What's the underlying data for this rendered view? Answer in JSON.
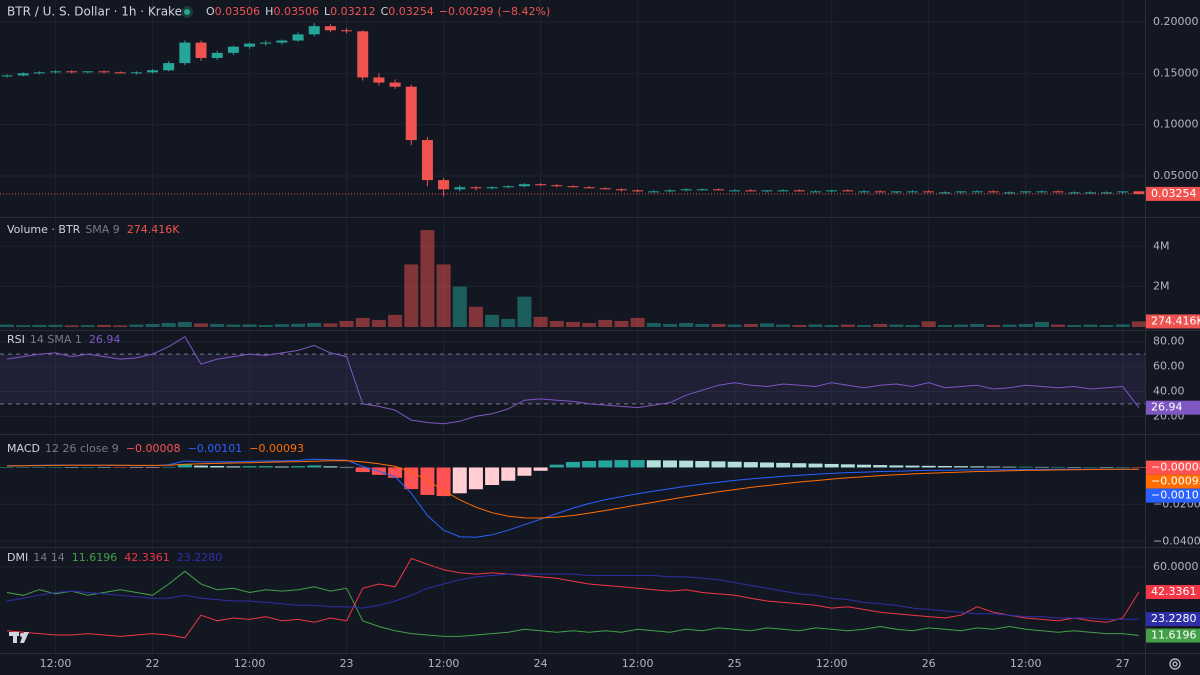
{
  "chart_data": [
    {
      "type": "candlestick",
      "title": "BTR / U. S. Dollar · 1h · Kraken",
      "header": [
        {
          "label": "O",
          "value": 0.03506
        },
        {
          "label": "H",
          "value": 0.03506
        },
        {
          "label": "L",
          "value": 0.03212
        },
        {
          "label": "C",
          "value": 0.03254
        }
      ],
      "change": {
        "value": -0.00299,
        "label": "−0.00299"
      },
      "change_percent": {
        "value": -8.42,
        "label": "(−8.42%)"
      },
      "open": [
        0.147,
        0.148,
        0.15,
        0.151,
        0.152,
        0.151,
        0.152,
        0.151,
        0.15,
        0.151,
        0.153,
        0.16,
        0.18,
        0.165,
        0.17,
        0.176,
        0.179,
        0.18,
        0.182,
        0.188,
        0.196,
        0.192,
        0.191,
        0.146,
        0.141,
        0.137,
        0.085,
        0.046,
        0.037,
        0.039,
        0.038,
        0.039,
        0.04,
        0.042,
        0.041,
        0.04,
        0.039,
        0.038,
        0.037,
        0.036,
        0.035,
        0.035,
        0.036,
        0.037,
        0.037,
        0.036,
        0.036,
        0.035,
        0.036,
        0.036,
        0.035,
        0.035,
        0.036,
        0.035,
        0.035,
        0.034,
        0.035,
        0.035,
        0.034,
        0.034,
        0.035,
        0.035,
        0.034,
        0.034,
        0.035,
        0.035,
        0.034,
        0.034,
        0.034,
        0.034,
        0.03506
      ],
      "high": [
        0.149,
        0.151,
        0.152,
        0.153,
        0.153,
        0.152,
        0.153,
        0.152,
        0.152,
        0.154,
        0.162,
        0.182,
        0.182,
        0.172,
        0.177,
        0.18,
        0.182,
        0.183,
        0.19,
        0.199,
        0.198,
        0.194,
        0.192,
        0.15,
        0.144,
        0.139,
        0.088,
        0.048,
        0.041,
        0.04,
        0.04,
        0.041,
        0.043,
        0.043,
        0.042,
        0.041,
        0.04,
        0.039,
        0.038,
        0.037,
        0.036,
        0.037,
        0.038,
        0.038,
        0.038,
        0.037,
        0.037,
        0.036,
        0.037,
        0.037,
        0.036,
        0.036,
        0.037,
        0.036,
        0.036,
        0.035,
        0.036,
        0.036,
        0.035,
        0.035,
        0.036,
        0.036,
        0.035,
        0.035,
        0.036,
        0.036,
        0.035,
        0.035,
        0.035,
        0.035,
        0.03506
      ],
      "low": [
        0.146,
        0.147,
        0.149,
        0.15,
        0.15,
        0.15,
        0.15,
        0.15,
        0.149,
        0.15,
        0.152,
        0.158,
        0.162,
        0.163,
        0.168,
        0.174,
        0.177,
        0.178,
        0.181,
        0.186,
        0.19,
        0.189,
        0.143,
        0.138,
        0.135,
        0.08,
        0.04,
        0.03,
        0.035,
        0.036,
        0.037,
        0.038,
        0.039,
        0.04,
        0.039,
        0.039,
        0.038,
        0.037,
        0.035,
        0.034,
        0.034,
        0.034,
        0.035,
        0.036,
        0.036,
        0.035,
        0.035,
        0.034,
        0.035,
        0.035,
        0.034,
        0.034,
        0.035,
        0.034,
        0.034,
        0.033,
        0.034,
        0.034,
        0.033,
        0.033,
        0.034,
        0.034,
        0.033,
        0.033,
        0.034,
        0.034,
        0.033,
        0.033,
        0.033,
        0.033,
        0.03212
      ],
      "close": [
        0.148,
        0.15,
        0.151,
        0.152,
        0.151,
        0.152,
        0.151,
        0.15,
        0.151,
        0.153,
        0.16,
        0.18,
        0.165,
        0.17,
        0.176,
        0.179,
        0.18,
        0.182,
        0.188,
        0.196,
        0.192,
        0.191,
        0.146,
        0.141,
        0.137,
        0.085,
        0.046,
        0.037,
        0.039,
        0.038,
        0.039,
        0.04,
        0.042,
        0.041,
        0.04,
        0.039,
        0.038,
        0.037,
        0.036,
        0.035,
        0.035,
        0.036,
        0.037,
        0.037,
        0.036,
        0.036,
        0.035,
        0.036,
        0.036,
        0.035,
        0.035,
        0.036,
        0.035,
        0.035,
        0.034,
        0.035,
        0.035,
        0.034,
        0.034,
        0.035,
        0.035,
        0.034,
        0.034,
        0.035,
        0.035,
        0.034,
        0.034,
        0.034,
        0.034,
        0.035,
        0.03254
      ],
      "up_color": "#26a69a",
      "down_color": "#ef5350",
      "ylim": [
        0.011,
        0.2215
      ],
      "yticks": [
        {
          "value": 0.05,
          "label": "0.05000"
        },
        {
          "value": 0.1,
          "label": "0.10000"
        },
        {
          "value": 0.15,
          "label": "0.15000"
        },
        {
          "value": 0.2,
          "label": "0.20000"
        }
      ],
      "xticks": [
        {
          "value": 3,
          "label": "12:00"
        },
        {
          "value": 9,
          "label": "22"
        },
        {
          "value": 15,
          "label": "12:00"
        },
        {
          "value": 21,
          "label": "23"
        },
        {
          "value": 27,
          "label": "12:00"
        },
        {
          "value": 33,
          "label": "24"
        },
        {
          "value": 39,
          "label": "12:00"
        },
        {
          "value": 45,
          "label": "25"
        },
        {
          "value": 51,
          "label": "12:00"
        },
        {
          "value": 57,
          "label": "26"
        },
        {
          "value": 63,
          "label": "12:00"
        },
        {
          "value": 69,
          "label": "27"
        }
      ],
      "grid": true
    },
    {
      "type": "bar",
      "title": "Volume · BTR",
      "subtitle": "SMA 9",
      "values": [
        120000,
        90000,
        100000,
        110000,
        80000,
        90000,
        100000,
        80000,
        120000,
        150000,
        200000,
        250000,
        180000,
        150000,
        120000,
        130000,
        100000,
        140000,
        160000,
        200000,
        180000,
        300000,
        450000,
        350000,
        600000,
        3100000,
        4800000,
        3100000,
        2000000,
        1000000,
        600000,
        400000,
        1500000,
        500000,
        300000,
        250000,
        200000,
        350000,
        300000,
        450000,
        200000,
        150000,
        200000,
        150000,
        150000,
        120000,
        150000,
        180000,
        120000,
        100000,
        130000,
        100000,
        120000,
        100000,
        150000,
        120000,
        100000,
        280000,
        100000,
        120000,
        150000,
        100000,
        120000,
        150000,
        250000,
        120000,
        100000,
        120000,
        100000,
        130000,
        274416
      ],
      "last_label": {
        "value": 274416,
        "label": "274.416K"
      },
      "up_color": "rgba(38,166,154,0.5)",
      "down_color": "rgba(239,83,80,0.5)",
      "ylim": [
        0,
        5350000
      ],
      "yticks": [
        {
          "value": 2000000,
          "label": "2M"
        },
        {
          "value": 4000000,
          "label": "4M"
        }
      ],
      "grid": true
    },
    {
      "type": "line",
      "title": "RSI",
      "subtitle": "14 SMA 1",
      "color": "#7e57c2",
      "values": [
        66,
        68,
        70,
        71,
        68,
        70,
        68,
        66,
        67,
        70,
        76,
        84,
        62,
        66,
        68,
        70,
        69,
        71,
        73,
        77,
        71,
        68,
        30,
        28,
        25,
        17,
        15,
        14,
        16,
        20,
        22,
        26,
        33,
        34,
        33,
        32,
        30,
        29,
        28,
        27,
        29,
        31,
        37,
        41,
        45,
        47,
        45,
        44,
        46,
        45,
        44,
        47,
        45,
        43,
        45,
        46,
        44,
        47,
        43,
        44,
        45,
        42,
        43,
        45,
        44,
        43,
        44,
        42,
        43,
        44,
        26.94
      ],
      "bands": [
        30,
        70
      ],
      "band_color": "rgba(126,87,194,0.12)",
      "ylim": [
        9,
        87
      ],
      "yticks": [
        {
          "value": 80,
          "label": "80.00"
        },
        {
          "value": 60,
          "label": "60.00"
        },
        {
          "value": 40,
          "label": "40.00"
        },
        {
          "value": 20,
          "label": "20.00"
        }
      ],
      "grid": true
    },
    {
      "type": "line",
      "title": "MACD",
      "subtitle": "12 26 close 9",
      "series": [
        {
          "kind": "histogram",
          "colors": [
            "#26a69a",
            "#b2dfdb",
            "#ffcdd2",
            "#ff5252"
          ],
          "values": [
            0.0002,
            0.0002,
            0.0002,
            0.0002,
            0.0001,
            0.0001,
            0,
            -0.0001,
            -0.0001,
            -0.0001,
            0.0003,
            0.0018,
            0.001,
            0.0008,
            0.0006,
            0.0007,
            0.0007,
            0.0005,
            0.0007,
            0.0011,
            0.0006,
            0.0003,
            -0.0025,
            -0.004,
            -0.0056,
            -0.0117,
            -0.0149,
            -0.0155,
            -0.014,
            -0.0118,
            -0.0095,
            -0.0072,
            -0.0045,
            -0.0018,
            0.0015,
            0.003,
            0.0035,
            0.0038,
            0.004,
            0.004,
            0.0039,
            0.0038,
            0.0037,
            0.0035,
            0.0033,
            0.0031,
            0.0029,
            0.0027,
            0.0025,
            0.0023,
            0.0021,
            0.0019,
            0.0017,
            0.0015,
            0.0013,
            0.0011,
            0.001,
            0.0009,
            0.0008,
            0.0007,
            0.0006,
            0.0005,
            0.0004,
            0.0004,
            0.0003,
            0.0003,
            0.0002,
            0.0002,
            0.0001,
            0.0001,
            -8e-05
          ],
          "last_label": {
            "value": -8e-05,
            "label": "−0.00008"
          }
        },
        {
          "color": "#2962ff",
          "values": [
            0.001,
            0.001,
            0.0012,
            0.0013,
            0.0013,
            0.0013,
            0.0012,
            0.0011,
            0.001,
            0.001,
            0.0015,
            0.0035,
            0.003,
            0.003,
            0.003,
            0.0033,
            0.0035,
            0.0035,
            0.0038,
            0.0045,
            0.0042,
            0.004,
            0.0005,
            -0.002,
            -0.005,
            -0.014,
            -0.026,
            -0.034,
            -0.0375,
            -0.0378,
            -0.0365,
            -0.034,
            -0.031,
            -0.028,
            -0.025,
            -0.022,
            -0.0195,
            -0.0175,
            -0.0158,
            -0.0142,
            -0.0128,
            -0.0115,
            -0.0102,
            -0.009,
            -0.008,
            -0.007,
            -0.0062,
            -0.0055,
            -0.0048,
            -0.0042,
            -0.0037,
            -0.0032,
            -0.0028,
            -0.0025,
            -0.0022,
            -0.002,
            -0.0018,
            -0.0016,
            -0.0015,
            -0.0014,
            -0.0013,
            -0.0012,
            -0.0012,
            -0.0011,
            -0.0011,
            -0.001,
            -0.001,
            -0.001,
            -0.001,
            -0.001,
            -0.00101
          ],
          "last_label": {
            "value": -0.00101,
            "label": "−0.00101"
          }
        },
        {
          "color": "#ff6d00",
          "values": [
            0.0008,
            0.0009,
            0.001,
            0.0011,
            0.0012,
            0.0012,
            0.0012,
            0.0012,
            0.0011,
            0.0011,
            0.0012,
            0.0017,
            0.002,
            0.0022,
            0.0024,
            0.0026,
            0.0028,
            0.003,
            0.0031,
            0.0034,
            0.0036,
            0.0037,
            0.003,
            0.002,
            0.0006,
            -0.0023,
            -0.0071,
            -0.0125,
            -0.0175,
            -0.0215,
            -0.0245,
            -0.0264,
            -0.0273,
            -0.0274,
            -0.0269,
            -0.026,
            -0.0247,
            -0.0233,
            -0.0218,
            -0.0203,
            -0.0188,
            -0.0173,
            -0.0159,
            -0.0145,
            -0.0132,
            -0.012,
            -0.0108,
            -0.0098,
            -0.0088,
            -0.0079,
            -0.0071,
            -0.0063,
            -0.0056,
            -0.005,
            -0.0044,
            -0.0039,
            -0.0035,
            -0.0031,
            -0.0028,
            -0.0025,
            -0.0022,
            -0.002,
            -0.0018,
            -0.0016,
            -0.0015,
            -0.0013,
            -0.0012,
            -0.0011,
            -0.001,
            -0.001,
            -0.00093
          ],
          "last_label": {
            "value": -0.00093,
            "label": "−0.00093"
          }
        }
      ],
      "ylim": [
        -0.042,
        0.0165
      ],
      "yticks": [
        {
          "value": -0.02,
          "label": "−0.02000"
        },
        {
          "value": -0.04,
          "label": "−0.04000"
        }
      ],
      "grid": true
    },
    {
      "type": "line",
      "title": "DMI",
      "subtitle": "14 14",
      "series": [
        {
          "color": "#43a047",
          "values": [
            42,
            40,
            44,
            41,
            43,
            40,
            42,
            44,
            42,
            40,
            48,
            57,
            48,
            44,
            45,
            42,
            44,
            43,
            44,
            46,
            43,
            45,
            22,
            18,
            15,
            13,
            12,
            11,
            11,
            12,
            13,
            14,
            16,
            15,
            14,
            15,
            14,
            15,
            14,
            16,
            15,
            14,
            16,
            15,
            17,
            16,
            15,
            17,
            16,
            15,
            17,
            16,
            15,
            16,
            18,
            16,
            15,
            17,
            16,
            15,
            17,
            16,
            18,
            16,
            15,
            14,
            15,
            14,
            13,
            13,
            11.6196
          ],
          "last_label": {
            "value": 11.6196,
            "label": "11.6196"
          }
        },
        {
          "color": "#f23645",
          "values": [
            15,
            14,
            13,
            12,
            12,
            13,
            12,
            11,
            12,
            13,
            12,
            10,
            26,
            22,
            24,
            23,
            25,
            22,
            23,
            21,
            24,
            22,
            45,
            48,
            46,
            66,
            62,
            58,
            56,
            55,
            56,
            55,
            54,
            53,
            52,
            50,
            48,
            47,
            46,
            45,
            44,
            43,
            44,
            42,
            41,
            40,
            38,
            36,
            35,
            34,
            33,
            31,
            32,
            30,
            28,
            27,
            26,
            25,
            24,
            26,
            32,
            28,
            26,
            24,
            23,
            22,
            24,
            22,
            21,
            24,
            42.3361
          ],
          "last_label": {
            "value": 42.3361,
            "label": "42.3361"
          }
        },
        {
          "color": "#2e2ea8",
          "values": [
            36,
            38,
            40,
            42,
            43,
            42,
            41,
            40,
            39,
            38,
            38,
            40,
            38,
            37,
            36,
            36,
            35,
            34,
            33,
            33,
            32,
            32,
            31,
            33,
            36,
            40,
            45,
            48,
            51,
            53,
            54,
            55,
            55,
            55,
            55,
            55,
            54,
            54,
            54,
            54,
            54,
            53,
            53,
            52,
            51,
            49,
            47,
            45,
            43,
            41,
            40,
            38,
            37,
            35,
            34,
            33,
            31,
            30,
            29,
            28,
            27,
            27,
            26,
            25,
            25,
            24,
            24,
            24,
            23,
            23,
            23.228
          ],
          "last_label": {
            "value": 23.228,
            "label": "23.2280"
          }
        }
      ],
      "ylim": [
        0,
        72
      ],
      "yticks": [
        {
          "value": 60,
          "label": "60.0000"
        }
      ],
      "grid": true
    }
  ]
}
